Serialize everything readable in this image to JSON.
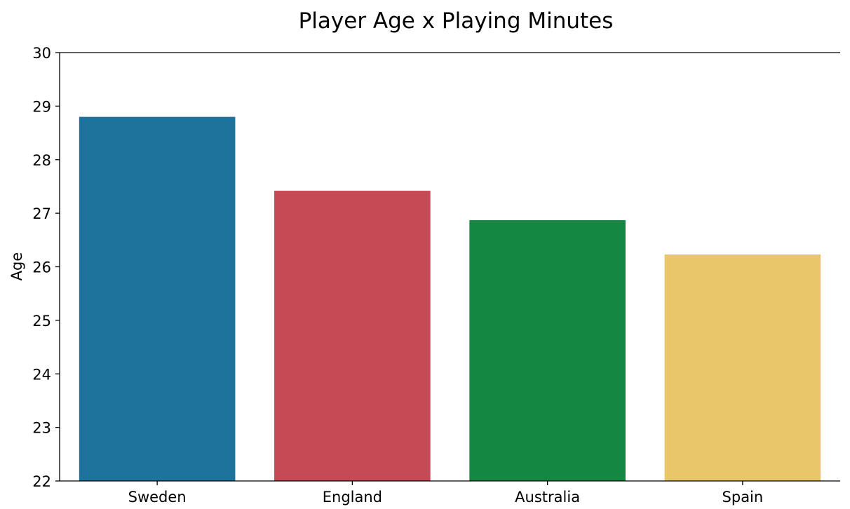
{
  "chart_data": {
    "type": "bar",
    "title": "Player Age x Playing Minutes",
    "xlabel": "",
    "ylabel": "Age",
    "categories": [
      "Sweden",
      "England",
      "Australia",
      "Spain"
    ],
    "values": [
      28.8,
      27.42,
      26.87,
      26.23
    ],
    "colors": [
      "#1d739c",
      "#c54a55",
      "#148843",
      "#eac66b"
    ],
    "ylim": [
      22,
      30
    ],
    "yticks": [
      22,
      23,
      24,
      25,
      26,
      27,
      28,
      29,
      30
    ],
    "grid": false,
    "legend": "none"
  }
}
